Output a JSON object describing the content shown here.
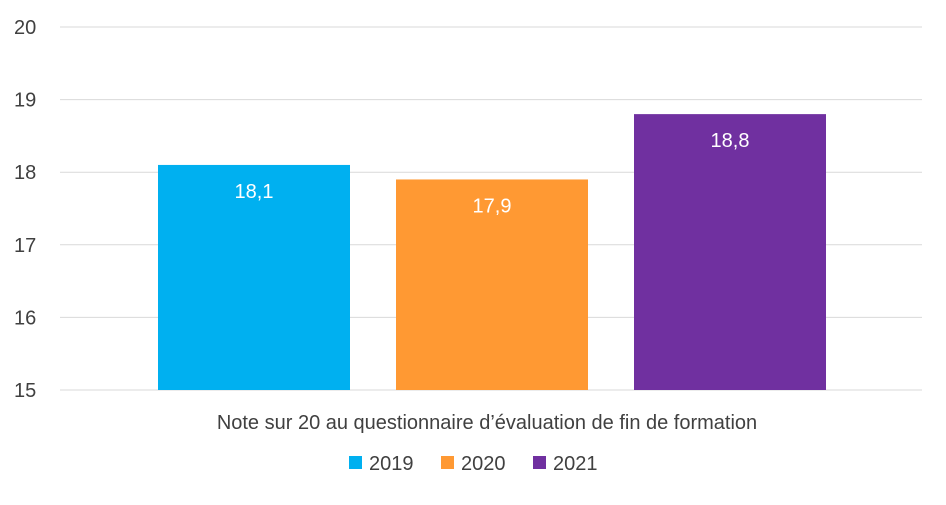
{
  "chart_data": {
    "type": "bar",
    "title": "",
    "xlabel": "Note sur 20 au questionnaire d’évaluation de fin de formation",
    "ylabel": "",
    "ylim": [
      15,
      20
    ],
    "yticks": [
      15,
      16,
      17,
      18,
      19,
      20
    ],
    "ytick_labels": [
      "15",
      "16",
      "17",
      "18",
      "19",
      "20"
    ],
    "grid": true,
    "legend_position": "bottom",
    "series": [
      {
        "name": "2019",
        "value": 18.1,
        "label": "18,1",
        "color": "#00b0f0"
      },
      {
        "name": "2020",
        "value": 17.9,
        "label": "17,9",
        "color": "#ff9933"
      },
      {
        "name": "2021",
        "value": 18.8,
        "label": "18,8",
        "color": "#7030a0"
      }
    ]
  }
}
